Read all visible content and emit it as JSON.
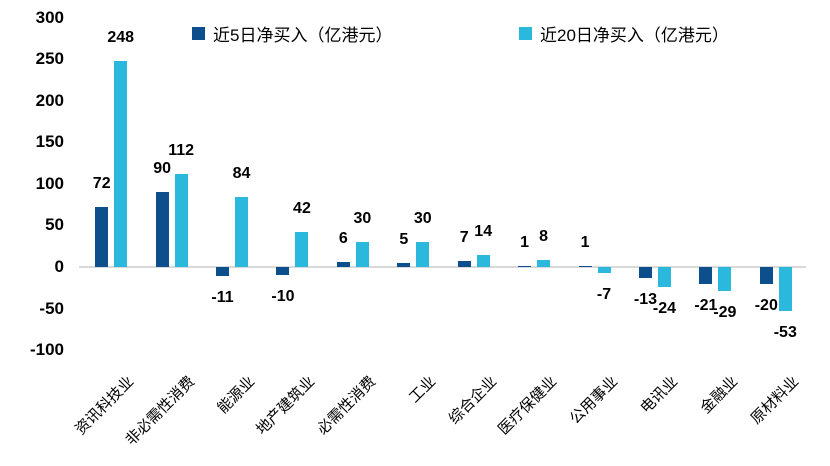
{
  "chart_data": {
    "type": "bar",
    "title": "",
    "xlabel": "",
    "ylabel": "",
    "categories": [
      "资讯科技业",
      "非必需性消费",
      "能源业",
      "地产建筑业",
      "必需性消费",
      "工业",
      "综合企业",
      "医疗保健业",
      "公用事业",
      "电讯业",
      "金融业",
      "原材料业"
    ],
    "series": [
      {
        "name": "近5日净买入（亿港元）",
        "color": "#0d4f8c",
        "values": [
          72,
          90,
          -11,
          -10,
          6,
          5,
          7,
          1,
          1,
          -13,
          -21,
          -20
        ]
      },
      {
        "name": "近20日净买入（亿港元）",
        "color": "#2bb8dd",
        "values": [
          248,
          112,
          84,
          42,
          30,
          30,
          14,
          8,
          -7,
          -24,
          -29,
          -53
        ]
      }
    ],
    "ylim": [
      -100,
      300
    ],
    "yticks": [
      300,
      250,
      200,
      150,
      100,
      50,
      0,
      -50,
      -100
    ],
    "grid": false,
    "legend_position": "top",
    "axis_line_color": "#d9d9d9",
    "text_color": "#000000"
  }
}
